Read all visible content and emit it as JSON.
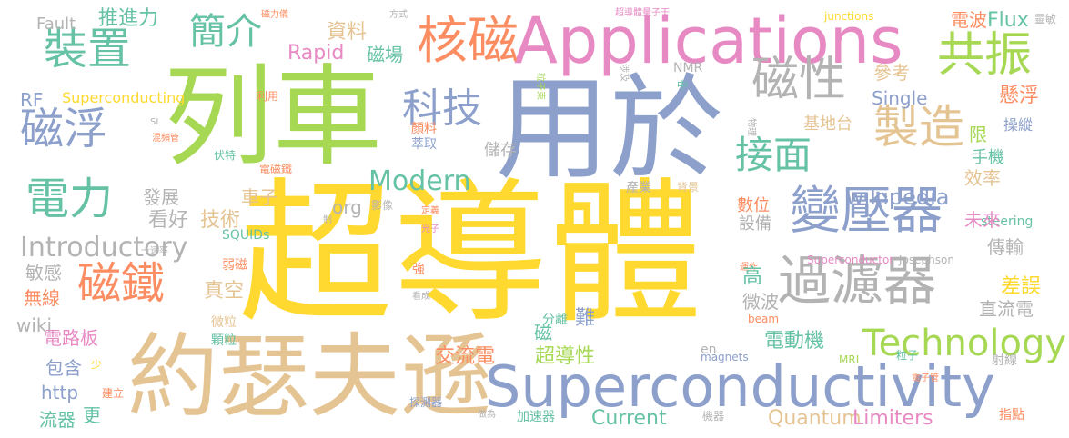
{
  "palette": {
    "green": "#66c2a5",
    "orange": "#fc8d62",
    "blue": "#8da0cb",
    "pink": "#e78ac3",
    "lime": "#a6d854",
    "yellow": "#ffd92f",
    "tan": "#e5c494",
    "gray": "#b3b3b3"
  },
  "words": [
    {
      "text": "超導體",
      "color": "#ffd92f"
    },
    {
      "text": "用於",
      "color": "#8da0cb"
    },
    {
      "text": "列車",
      "color": "#a6d854"
    },
    {
      "text": "約瑟夫遜",
      "color": "#e5c494"
    },
    {
      "text": "Applications",
      "color": "#e78ac3"
    },
    {
      "text": "Superconductivity",
      "color": "#8da0cb"
    },
    {
      "text": "過濾器",
      "color": "#b3b3b3"
    },
    {
      "text": "變壓器",
      "color": "#8da0cb"
    },
    {
      "text": "磁性",
      "color": "#b3b3b3"
    },
    {
      "text": "核磁",
      "color": "#fc8d62"
    },
    {
      "text": "共振",
      "color": "#a6d854"
    },
    {
      "text": "製造",
      "color": "#e5c494"
    },
    {
      "text": "裝置",
      "color": "#66c2a5"
    },
    {
      "text": "磁浮",
      "color": "#8da0cb"
    },
    {
      "text": "電力",
      "color": "#66c2a5"
    },
    {
      "text": "磁鐵",
      "color": "#fc8d62"
    },
    {
      "text": "科技",
      "color": "#8da0cb"
    },
    {
      "text": "接面",
      "color": "#66c2a5"
    },
    {
      "text": "簡介",
      "color": "#66c2a5"
    },
    {
      "text": "Technology",
      "color": "#a6d854"
    },
    {
      "text": "Introductory",
      "color": "#b3b3b3"
    },
    {
      "text": "Modern",
      "color": "#66c2a5"
    },
    {
      "text": "wikipedia",
      "color": "#8da0cb"
    },
    {
      "text": "Fault",
      "color": "#b3b3b3"
    },
    {
      "text": "推進力",
      "color": "#66c2a5"
    },
    {
      "text": "資料",
      "color": "#e5c494"
    },
    {
      "text": "Rapid",
      "color": "#e78ac3"
    },
    {
      "text": "磁場",
      "color": "#66c2a5"
    },
    {
      "text": "磁力儀",
      "color": "#fc8d62"
    },
    {
      "text": "方式",
      "color": "#b3b3b3"
    },
    {
      "text": "超導體量子干",
      "color": "#e78ac3"
    },
    {
      "text": "junctions",
      "color": "#ffd92f"
    },
    {
      "text": "電波",
      "color": "#fc8d62"
    },
    {
      "text": "Flux",
      "color": "#66c2a5"
    },
    {
      "text": "靈敏",
      "color": "#b3b3b3"
    },
    {
      "text": "粒子束",
      "color": "#a6d854"
    },
    {
      "text": "NMR",
      "color": "#b3b3b3"
    },
    {
      "text": "涉及",
      "color": "#b3b3b3"
    },
    {
      "text": "參考",
      "color": "#e5c494"
    },
    {
      "text": "Single",
      "color": "#8da0cb"
    },
    {
      "text": "懸浮",
      "color": "#fc8d62"
    },
    {
      "text": "操縱",
      "color": "#8da0cb"
    },
    {
      "text": "RF",
      "color": "#8da0cb"
    },
    {
      "text": "Superconducting",
      "color": "#ffd92f"
    },
    {
      "text": "利用",
      "color": "#fc8d62"
    },
    {
      "text": "中",
      "color": "#66c2a5"
    },
    {
      "text": "限",
      "color": "#a6d854"
    },
    {
      "text": "SI",
      "color": "#b3b3b3"
    },
    {
      "text": "混頻管",
      "color": "#fc8d62"
    },
    {
      "text": "物理",
      "color": "#b3b3b3"
    },
    {
      "text": "基地台",
      "color": "#e5c494"
    },
    {
      "text": "手機",
      "color": "#66c2a5"
    },
    {
      "text": "顏料",
      "color": "#fc8d62"
    },
    {
      "text": "萃取",
      "color": "#8da0cb"
    },
    {
      "text": "儲存",
      "color": "#b3b3b3"
    },
    {
      "text": "伏特",
      "color": "#66c2a5"
    },
    {
      "text": "電磁鐵",
      "color": "#fc8d62"
    },
    {
      "text": "效率",
      "color": "#e5c494"
    },
    {
      "text": "發展",
      "color": "#b3b3b3"
    },
    {
      "text": "車子",
      "color": "#e5c494"
    },
    {
      "text": "org",
      "color": "#b3b3b3"
    },
    {
      "text": "產業",
      "color": "#b3b3b3"
    },
    {
      "text": "背景",
      "color": "#e5c494"
    },
    {
      "text": "steering",
      "color": "#66c2a5"
    },
    {
      "text": "數位",
      "color": "#fc8d62"
    },
    {
      "text": "設備",
      "color": "#b3b3b3"
    },
    {
      "text": "未來",
      "color": "#e78ac3"
    },
    {
      "text": "看好",
      "color": "#b3b3b3"
    },
    {
      "text": "技術",
      "color": "#e5c494"
    },
    {
      "text": "影像",
      "color": "#b3b3b3"
    },
    {
      "text": "定義",
      "color": "#fc8d62"
    },
    {
      "text": "光子",
      "color": "#e78ac3"
    },
    {
      "text": "制",
      "color": "#b3b3b3"
    },
    {
      "text": "SQUIDs",
      "color": "#66c2a5"
    },
    {
      "text": "一速率",
      "color": "#b3b3b3"
    },
    {
      "text": "傳輸",
      "color": "#b3b3b3"
    },
    {
      "text": "Superconductor",
      "color": "#e78ac3"
    },
    {
      "text": "Josephson",
      "color": "#b3b3b3"
    },
    {
      "text": "敏感",
      "color": "#b3b3b3"
    },
    {
      "text": "弱磁",
      "color": "#fc8d62"
    },
    {
      "text": "強",
      "color": "#fc8d62"
    },
    {
      "text": "運作",
      "color": "#fc8d62"
    },
    {
      "text": "高",
      "color": "#66c2a5"
    },
    {
      "text": "無線",
      "color": "#fc8d62"
    },
    {
      "text": "真空",
      "color": "#e5c494"
    },
    {
      "text": "看成",
      "color": "#b3b3b3"
    },
    {
      "text": "差誤",
      "color": "#ffd92f"
    },
    {
      "text": "微波",
      "color": "#b3b3b3"
    },
    {
      "text": "beam",
      "color": "#fc8d62"
    },
    {
      "text": "wiki",
      "color": "#b3b3b3"
    },
    {
      "text": "微粒",
      "color": "#e5c494"
    },
    {
      "text": "分離",
      "color": "#66c2a5"
    },
    {
      "text": "難",
      "color": "#8da0cb"
    },
    {
      "text": "磁",
      "color": "#66c2a5"
    },
    {
      "text": "直流電",
      "color": "#b3b3b3"
    },
    {
      "text": "電路板",
      "color": "#e78ac3"
    },
    {
      "text": "顆粒",
      "color": "#66c2a5"
    },
    {
      "text": "交流電",
      "color": "#fc8d62"
    },
    {
      "text": "超導性",
      "color": "#a6d854"
    },
    {
      "text": "en",
      "color": "#b3b3b3"
    },
    {
      "text": "電動機",
      "color": "#66c2a5"
    },
    {
      "text": "包含",
      "color": "#8da0cb"
    },
    {
      "text": "少",
      "color": "#ffd92f"
    },
    {
      "text": "magnets",
      "color": "#8da0cb"
    },
    {
      "text": "MRI",
      "color": "#a6d854"
    },
    {
      "text": "粒子",
      "color": "#66c2a5"
    },
    {
      "text": "射線",
      "color": "#b3b3b3"
    },
    {
      "text": "http",
      "color": "#8da0cb"
    },
    {
      "text": "電子管",
      "color": "#fc8d62"
    },
    {
      "text": "建立",
      "color": "#fc8d62"
    },
    {
      "text": "探測器",
      "color": "#8da0cb"
    },
    {
      "text": "流器",
      "color": "#66c2a5"
    },
    {
      "text": "更",
      "color": "#66c2a5"
    },
    {
      "text": "做為",
      "color": "#b3b3b3"
    },
    {
      "text": "加速器",
      "color": "#66c2a5"
    },
    {
      "text": "Current",
      "color": "#66c2a5"
    },
    {
      "text": "機器",
      "color": "#b3b3b3"
    },
    {
      "text": "Quantum",
      "color": "#e5c494"
    },
    {
      "text": "Limiters",
      "color": "#e78ac3"
    },
    {
      "text": "指點",
      "color": "#fc8d62"
    }
  ]
}
